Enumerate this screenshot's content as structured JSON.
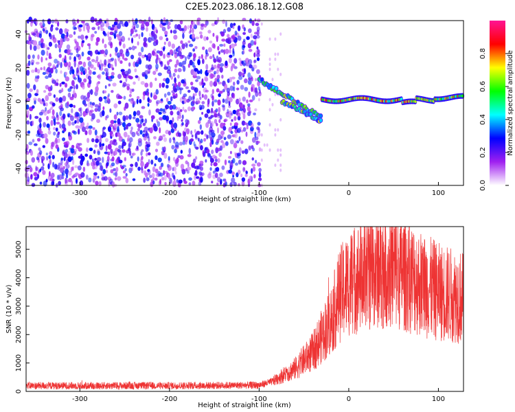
{
  "title": "C2E5.2023.086.18.12.G08",
  "chart_data": [
    {
      "type": "heatmap",
      "xlabel": "Height of straight line (km)",
      "ylabel": "Frequency (Hz)",
      "xlim": [
        -360,
        128
      ],
      "ylim": [
        -50,
        48
      ],
      "xticks": [
        -300,
        -200,
        -100,
        0,
        100
      ],
      "yticks": [
        -40,
        -20,
        0,
        20,
        40
      ],
      "colorbar": {
        "label": "Normalized spectral amplitude",
        "range": [
          0.0,
          1.0
        ],
        "ticks": [
          0.0,
          0.2,
          0.4,
          0.6,
          0.8
        ],
        "colors": [
          "#ffffff",
          "#a020f0",
          "#0000ff",
          "#00ffff",
          "#00ff00",
          "#ffff00",
          "#ff0000",
          "#ff1493"
        ]
      },
      "regions": [
        {
          "x_range": [
            -360,
            -100
          ],
          "pattern": "broadband noise",
          "amplitude": 0.15
        },
        {
          "x_range": [
            -100,
            -30
          ],
          "pattern": "descending signal trace",
          "frequency_start": 13,
          "frequency_end": -10,
          "amplitude": 0.5
        },
        {
          "x_range": [
            -30,
            128
          ],
          "pattern": "narrow carrier",
          "frequency": 1,
          "amplitude": 0.8
        }
      ]
    },
    {
      "type": "line",
      "xlabel": "Height of straight line (km)",
      "ylabel": "SNR (10 * v/v)",
      "xlim": [
        -360,
        128
      ],
      "ylim": [
        0,
        5800
      ],
      "xticks": [
        -300,
        -200,
        -100,
        0,
        100
      ],
      "yticks": [
        0,
        1000,
        2000,
        3000,
        4000,
        5000
      ],
      "color": "#ee3333",
      "series": [
        {
          "x": [
            -360,
            -300,
            -200,
            -100,
            -85,
            -80,
            -60,
            -40,
            -20,
            -10,
            0,
            20,
            40,
            60,
            80,
            100,
            128
          ],
          "y": [
            200,
            200,
            200,
            220,
            350,
            450,
            800,
            1400,
            2500,
            3400,
            3800,
            4200,
            4400,
            4200,
            3800,
            3500,
            3300
          ]
        }
      ]
    }
  ]
}
